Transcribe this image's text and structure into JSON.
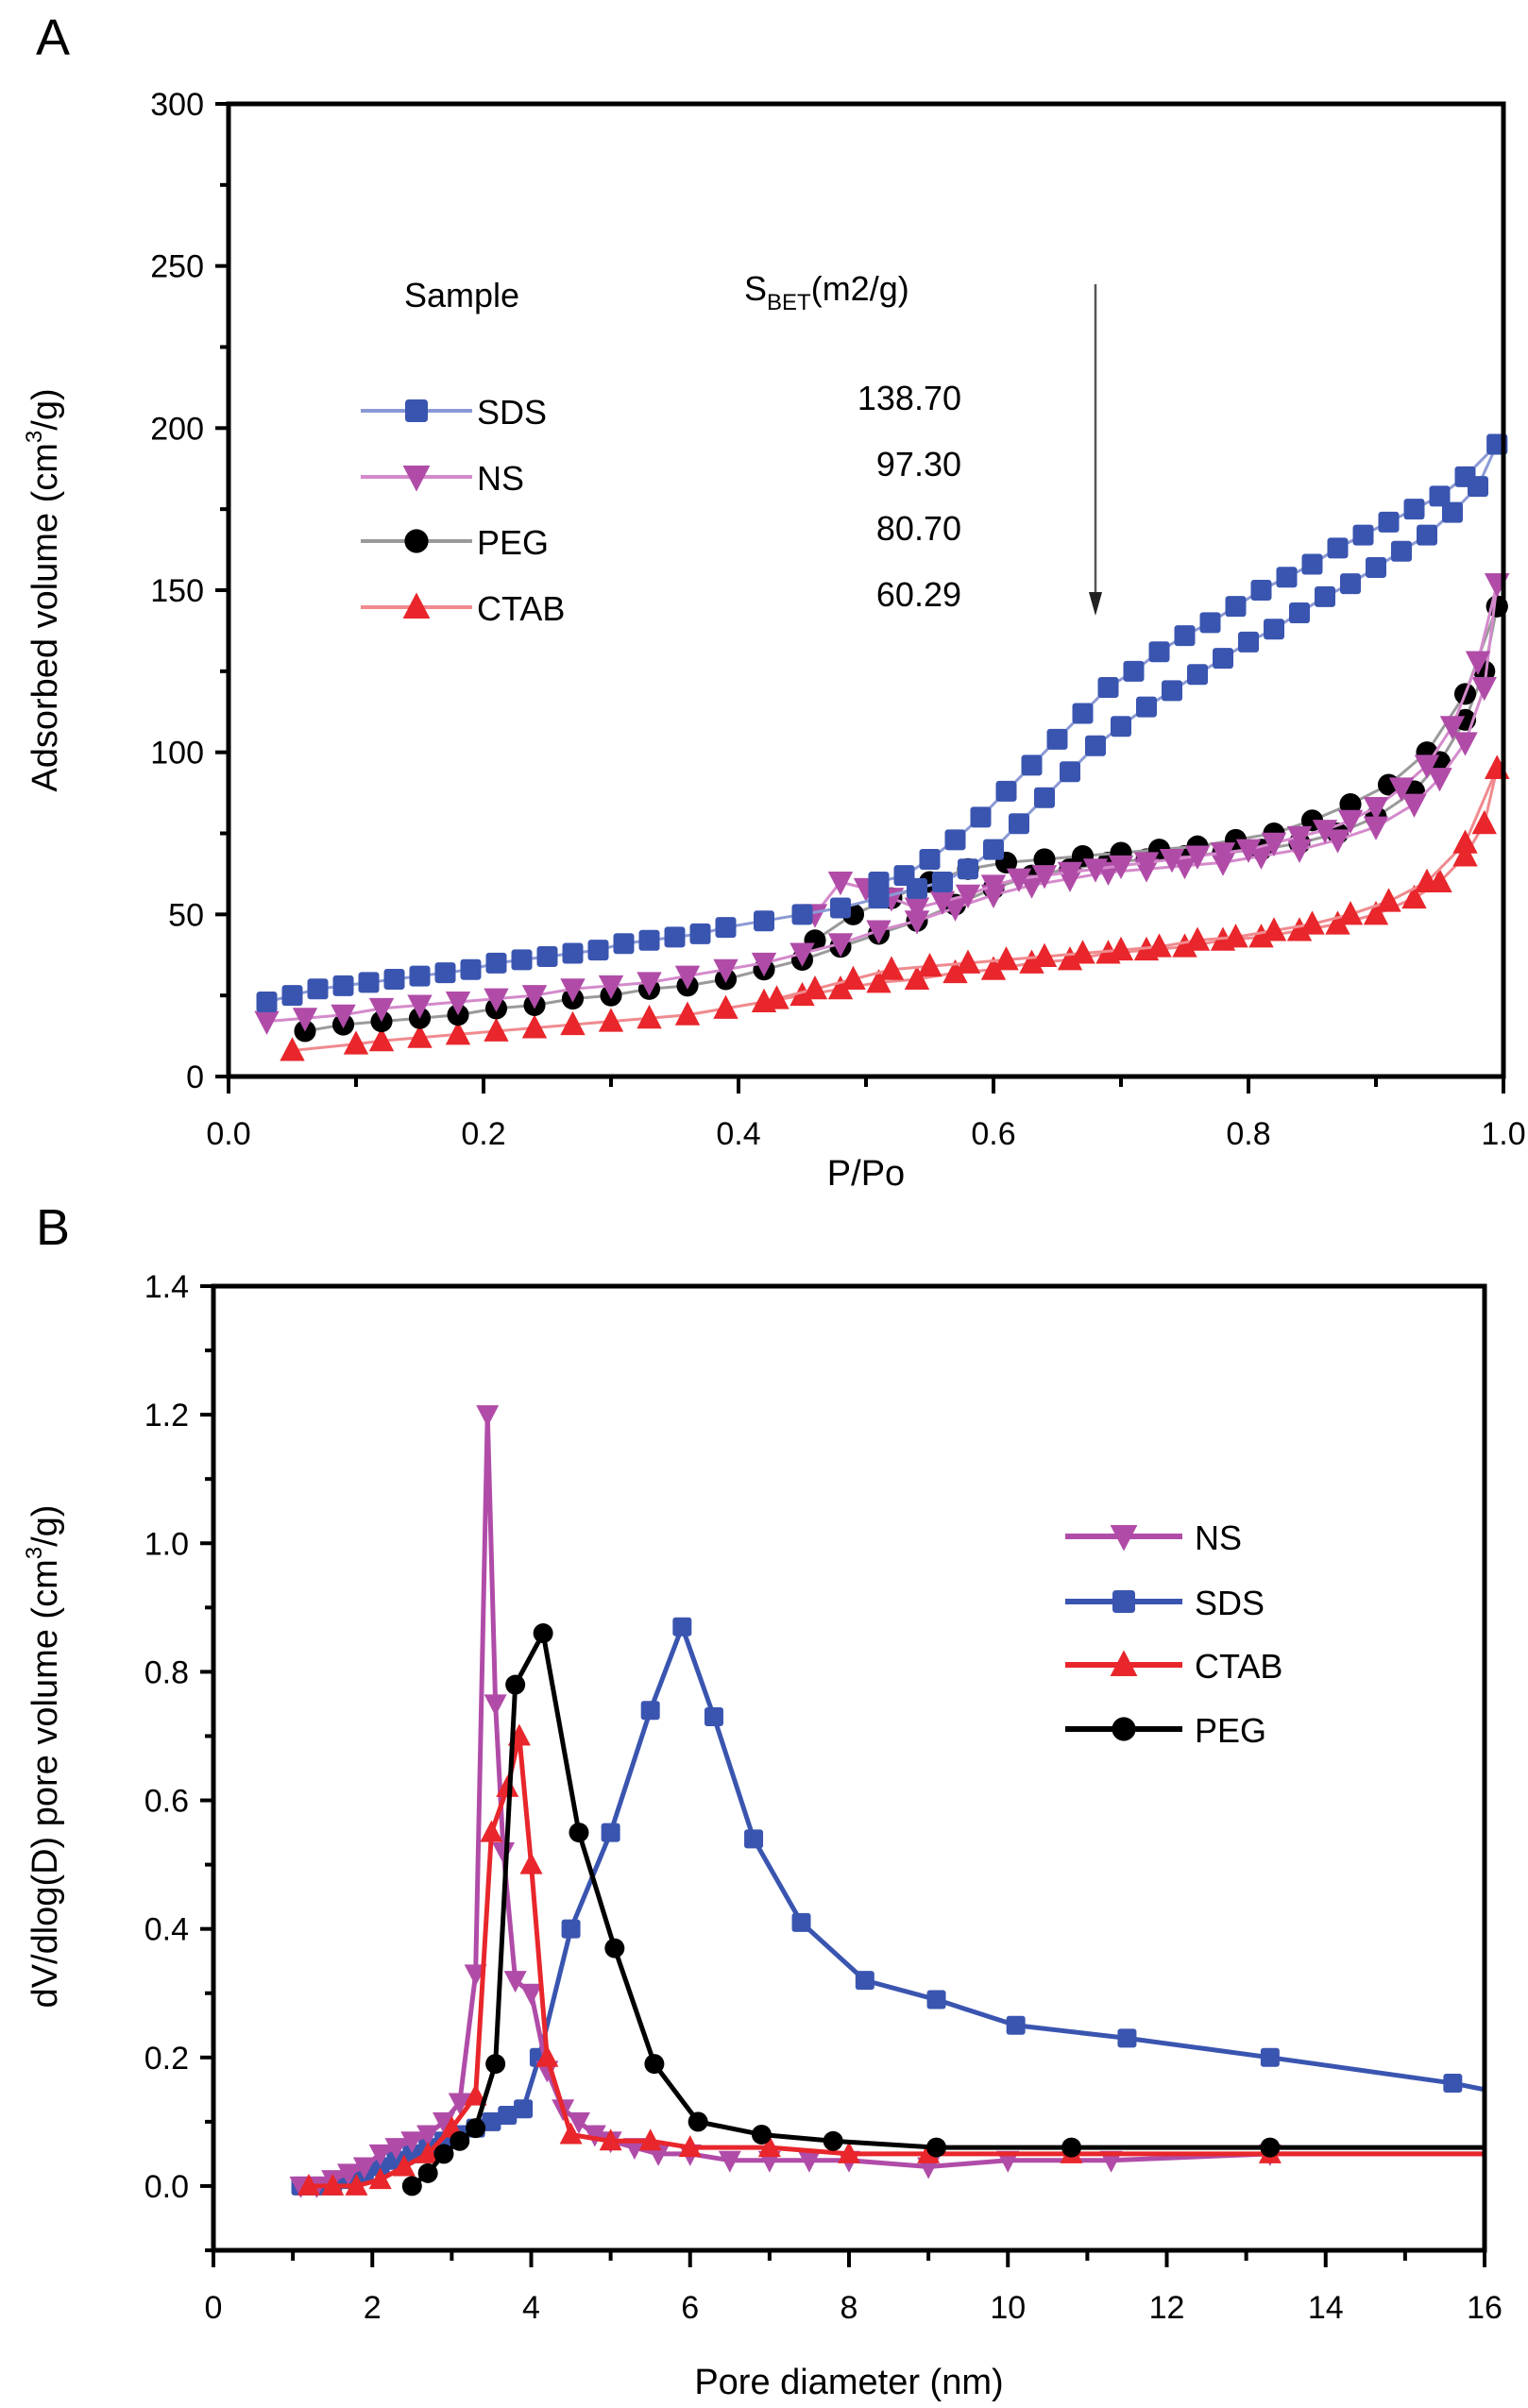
{
  "chart_data": [
    {
      "panel": "A",
      "type": "line",
      "title": "",
      "xlabel": "P/Po",
      "ylabel": "Adsorbed volume (cm3/g)",
      "ylabel_parts": {
        "pre": "Adsorbed volume (cm",
        "sup": "3",
        "post": "/g)"
      },
      "xlim": [
        0.0,
        1.0
      ],
      "ylim": [
        0,
        300
      ],
      "xticks": [
        "0.0",
        "0.2",
        "0.4",
        "0.6",
        "0.8",
        "1.0"
      ],
      "xtick_values": [
        0,
        0.2,
        0.4,
        0.6,
        0.8,
        1.0
      ],
      "yticks": [
        "0",
        "50",
        "100",
        "150",
        "200",
        "250",
        "300"
      ],
      "ytick_values": [
        0,
        50,
        100,
        150,
        200,
        250,
        300
      ],
      "grid": false,
      "legend_placement": "top-left",
      "legend_header": {
        "sample": "Sample",
        "sbet_main": "S",
        "sbet_sub": "BET",
        "sbet_unit": "(m2/g)"
      },
      "annotation": "downward arrow at P/Po ≈ 0.68",
      "arrow_x": 0.68,
      "arrow_y_range": [
        240,
        143
      ],
      "series": [
        {
          "name": "SDS",
          "sbet": "138.70",
          "color": "#3a55b0",
          "line_color": "#8b9ad6",
          "marker": "square",
          "adsorption": {
            "x": [
              0.03,
              0.05,
              0.07,
              0.09,
              0.11,
              0.13,
              0.15,
              0.17,
              0.19,
              0.21,
              0.23,
              0.25,
              0.27,
              0.29,
              0.31,
              0.33,
              0.35,
              0.37,
              0.39,
              0.42,
              0.45,
              0.48,
              0.51,
              0.54,
              0.56,
              0.58,
              0.6,
              0.62,
              0.64,
              0.66,
              0.68,
              0.7,
              0.72,
              0.74,
              0.76,
              0.78,
              0.8,
              0.82,
              0.84,
              0.86,
              0.88,
              0.9,
              0.92,
              0.94,
              0.96,
              0.98,
              0.995
            ],
            "y": [
              23,
              25,
              27,
              28,
              29,
              30,
              31,
              32,
              33,
              35,
              36,
              37,
              38,
              39,
              41,
              42,
              43,
              44,
              46,
              48,
              50,
              52,
              55,
              58,
              60,
              64,
              70,
              78,
              86,
              94,
              102,
              108,
              114,
              119,
              124,
              129,
              134,
              138,
              143,
              148,
              152,
              157,
              162,
              167,
              174,
              182,
              195
            ]
          },
          "desorption": {
            "x": [
              0.995,
              0.97,
              0.95,
              0.93,
              0.91,
              0.89,
              0.87,
              0.85,
              0.83,
              0.81,
              0.79,
              0.77,
              0.75,
              0.73,
              0.71,
              0.69,
              0.67,
              0.65,
              0.63,
              0.61,
              0.59,
              0.57,
              0.55,
              0.53,
              0.51
            ],
            "y": [
              195,
              185,
              179,
              175,
              171,
              167,
              163,
              158,
              154,
              150,
              145,
              140,
              136,
              131,
              125,
              120,
              112,
              104,
              96,
              88,
              80,
              73,
              67,
              62,
              60
            ]
          }
        },
        {
          "name": "NS",
          "sbet": "97.30",
          "color": "#b04ca8",
          "line_color": "#d48acb",
          "marker": "triangle-down",
          "adsorption": {
            "x": [
              0.03,
              0.06,
              0.09,
              0.12,
              0.15,
              0.18,
              0.21,
              0.24,
              0.27,
              0.3,
              0.33,
              0.36,
              0.39,
              0.42,
              0.45,
              0.48,
              0.51,
              0.54,
              0.57,
              0.6,
              0.63,
              0.66,
              0.69,
              0.72,
              0.75,
              0.78,
              0.81,
              0.84,
              0.87,
              0.9,
              0.93,
              0.95,
              0.97,
              0.985,
              0.995
            ],
            "y": [
              17,
              18,
              19,
              21,
              22,
              23,
              24,
              25,
              27,
              28,
              29,
              31,
              33,
              35,
              38,
              41,
              45,
              48,
              52,
              56,
              59,
              61,
              63,
              64,
              65,
              66,
              68,
              70,
              73,
              77,
              84,
              92,
              103,
              120,
              152
            ]
          },
          "desorption": {
            "x": [
              0.995,
              0.98,
              0.96,
              0.94,
              0.92,
              0.9,
              0.88,
              0.86,
              0.84,
              0.82,
              0.8,
              0.78,
              0.76,
              0.74,
              0.72,
              0.7,
              0.68,
              0.66,
              0.64,
              0.62,
              0.6,
              0.58,
              0.56,
              0.54,
              0.52,
              0.5,
              0.48,
              0.46
            ],
            "y": [
              152,
              128,
              108,
              96,
              89,
              83,
              79,
              76,
              74,
              72,
              70,
              69,
              68,
              67,
              66,
              65,
              64,
              63,
              62,
              61,
              59,
              56,
              54,
              52,
              55,
              58,
              60,
              50
            ]
          }
        },
        {
          "name": "PEG",
          "sbet": "80.70",
          "color": "#000000",
          "line_color": "#9a9a9a",
          "marker": "circle",
          "adsorption": {
            "x": [
              0.06,
              0.09,
              0.12,
              0.15,
              0.18,
              0.21,
              0.24,
              0.27,
              0.3,
              0.33,
              0.36,
              0.39,
              0.42,
              0.45,
              0.48,
              0.51,
              0.54,
              0.57,
              0.6,
              0.63,
              0.66,
              0.69,
              0.72,
              0.75,
              0.78,
              0.81,
              0.84,
              0.87,
              0.9,
              0.93,
              0.95,
              0.97,
              0.985,
              0.995
            ],
            "y": [
              14,
              16,
              17,
              18,
              19,
              21,
              22,
              24,
              25,
              27,
              28,
              30,
              33,
              36,
              40,
              44,
              48,
              53,
              58,
              62,
              64,
              66,
              67,
              68,
              69,
              70,
              72,
              75,
              80,
              88,
              97,
              110,
              125,
              145
            ]
          },
          "desorption": {
            "x": [
              0.995,
              0.97,
              0.94,
              0.91,
              0.88,
              0.85,
              0.82,
              0.79,
              0.76,
              0.73,
              0.7,
              0.67,
              0.64,
              0.61,
              0.58,
              0.55,
              0.52,
              0.49,
              0.46
            ],
            "y": [
              145,
              118,
              100,
              90,
              84,
              79,
              75,
              73,
              71,
              70,
              69,
              68,
              67,
              66,
              64,
              60,
              55,
              50,
              42
            ]
          }
        },
        {
          "name": "CTAB",
          "sbet": "60.29",
          "color": "#e8262b",
          "line_color": "#f08a8e",
          "marker": "triangle-up",
          "adsorption": {
            "x": [
              0.05,
              0.1,
              0.12,
              0.15,
              0.18,
              0.21,
              0.24,
              0.27,
              0.3,
              0.33,
              0.36,
              0.39,
              0.42,
              0.45,
              0.48,
              0.51,
              0.54,
              0.57,
              0.6,
              0.63,
              0.66,
              0.69,
              0.72,
              0.75,
              0.78,
              0.81,
              0.84,
              0.87,
              0.9,
              0.93,
              0.95,
              0.97,
              0.985,
              0.995
            ],
            "y": [
              8,
              10,
              11,
              12,
              13,
              14,
              15,
              16,
              17,
              18,
              19,
              21,
              23,
              25,
              27,
              29,
              30,
              32,
              33,
              35,
              36,
              38,
              39,
              40,
              42,
              43,
              45,
              47,
              50,
              55,
              60,
              68,
              78,
              95
            ]
          },
          "desorption": {
            "x": [
              0.995,
              0.97,
              0.94,
              0.91,
              0.88,
              0.85,
              0.82,
              0.79,
              0.76,
              0.73,
              0.7,
              0.67,
              0.64,
              0.61,
              0.58,
              0.55,
              0.52,
              0.49,
              0.46,
              0.43
            ],
            "y": [
              95,
              72,
              60,
              54,
              50,
              47,
              45,
              43,
              42,
              40,
              39,
              38,
              37,
              36,
              35,
              34,
              33,
              30,
              27,
              24
            ]
          }
        }
      ]
    },
    {
      "panel": "B",
      "type": "line",
      "title": "",
      "xlabel": "Pore diameter (nm)",
      "ylabel": "dV/dlog(D) pore volume (cm3/g)",
      "ylabel_parts": {
        "pre": "dV/dlog(D) pore volume (cm",
        "sup": "3",
        "post": "/g)"
      },
      "xlim": [
        0,
        16
      ],
      "ylim": [
        -0.1,
        1.4
      ],
      "xticks": [
        "0",
        "2",
        "4",
        "6",
        "8",
        "10",
        "12",
        "14",
        "16"
      ],
      "xtick_values": [
        0,
        2,
        4,
        6,
        8,
        10,
        12,
        14,
        16
      ],
      "yticks": [
        "0.0",
        "0.2",
        "0.4",
        "0.6",
        "0.8",
        "1.0",
        "1.2",
        "1.4"
      ],
      "ytick_values": [
        0,
        0.2,
        0.4,
        0.6,
        0.8,
        1.0,
        1.2,
        1.4
      ],
      "grid": false,
      "legend_placement": "center-right",
      "series": [
        {
          "name": "NS",
          "color": "#b04ca8",
          "marker": "triangle-down",
          "x": [
            1.1,
            1.3,
            1.5,
            1.7,
            1.9,
            2.1,
            2.3,
            2.5,
            2.7,
            2.9,
            3.1,
            3.3,
            3.45,
            3.55,
            3.65,
            3.8,
            4.0,
            4.2,
            4.4,
            4.6,
            4.8,
            5.0,
            5.3,
            5.6,
            6.0,
            6.5,
            7.0,
            7.5,
            8.0,
            9.0,
            10.0,
            11.3,
            13.3,
            16.0
          ],
          "y": [
            0.0,
            0.0,
            0.01,
            0.02,
            0.03,
            0.05,
            0.06,
            0.07,
            0.08,
            0.1,
            0.13,
            0.33,
            1.2,
            0.75,
            0.52,
            0.32,
            0.3,
            0.18,
            0.12,
            0.1,
            0.08,
            0.07,
            0.06,
            0.05,
            0.05,
            0.04,
            0.04,
            0.04,
            0.04,
            0.03,
            0.04,
            0.04,
            0.05,
            0.05
          ]
        },
        {
          "name": "SDS",
          "color": "#3a55b0",
          "marker": "square",
          "x": [
            1.1,
            1.3,
            1.5,
            1.7,
            1.9,
            2.1,
            2.3,
            2.5,
            2.7,
            2.9,
            3.1,
            3.3,
            3.5,
            3.7,
            3.9,
            4.1,
            4.5,
            5.0,
            5.5,
            5.9,
            6.3,
            6.8,
            7.4,
            8.2,
            9.1,
            10.1,
            11.5,
            13.3,
            15.6,
            16.0
          ],
          "y": [
            0.0,
            0.0,
            0.0,
            0.01,
            0.02,
            0.03,
            0.04,
            0.05,
            0.06,
            0.07,
            0.08,
            0.09,
            0.1,
            0.11,
            0.12,
            0.2,
            0.4,
            0.55,
            0.74,
            0.87,
            0.73,
            0.54,
            0.41,
            0.32,
            0.29,
            0.25,
            0.23,
            0.2,
            0.16,
            0.15
          ]
        },
        {
          "name": "CTAB",
          "color": "#e8262b",
          "marker": "triangle-up",
          "x": [
            1.2,
            1.5,
            1.8,
            2.1,
            2.4,
            2.7,
            3.0,
            3.3,
            3.5,
            3.7,
            3.85,
            4.0,
            4.2,
            4.5,
            5.0,
            5.5,
            6.0,
            7.0,
            8.0,
            9.0,
            10.8,
            13.3,
            16.0
          ],
          "y": [
            0.0,
            0.0,
            0.0,
            0.01,
            0.03,
            0.05,
            0.09,
            0.14,
            0.55,
            0.62,
            0.7,
            0.5,
            0.2,
            0.08,
            0.07,
            0.07,
            0.06,
            0.06,
            0.05,
            0.05,
            0.05,
            0.05,
            0.05
          ]
        },
        {
          "name": "PEG",
          "color": "#000000",
          "marker": "circle",
          "x": [
            2.5,
            2.7,
            2.9,
            3.1,
            3.3,
            3.55,
            3.8,
            4.15,
            4.6,
            5.05,
            5.55,
            6.1,
            6.9,
            7.8,
            9.1,
            10.8,
            13.3,
            16.0
          ],
          "y": [
            0.0,
            0.02,
            0.05,
            0.07,
            0.09,
            0.19,
            0.78,
            0.86,
            0.55,
            0.37,
            0.19,
            0.1,
            0.08,
            0.07,
            0.06,
            0.06,
            0.06,
            0.06
          ]
        }
      ]
    }
  ]
}
